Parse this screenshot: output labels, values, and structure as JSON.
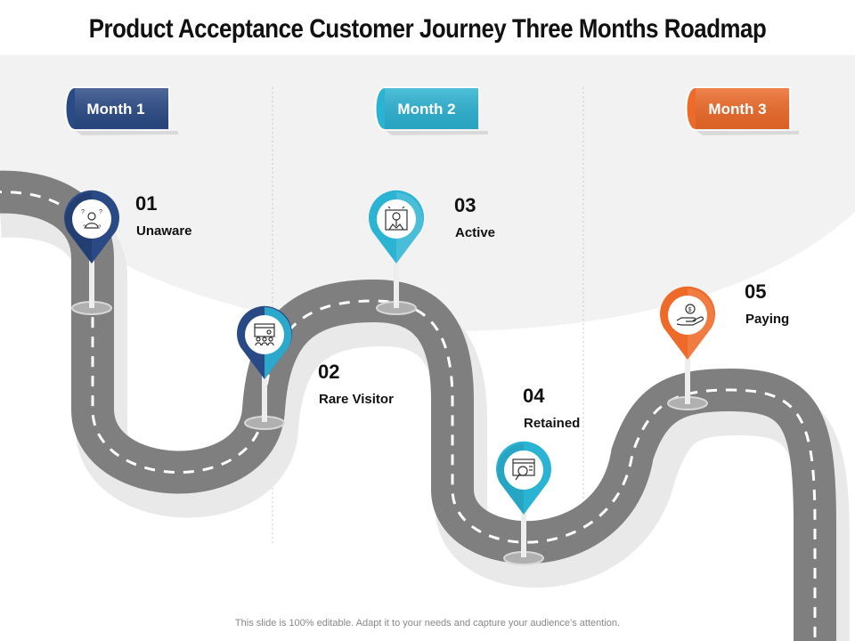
{
  "title": "Product Acceptance Customer Journey Three Months Roadmap",
  "footer": "This slide is 100% editable. Adapt it to your needs and capture your audience’s attention.",
  "months": [
    {
      "label": "Month 1",
      "color": "#2a4a86"
    },
    {
      "label": "Month 2",
      "color": "#2bb3d3"
    },
    {
      "label": "Month 3",
      "color": "#ee6a28"
    }
  ],
  "stages": [
    {
      "number": "01",
      "label": "Unaware",
      "color": "#2a4a86",
      "icon": "confused-person-icon"
    },
    {
      "number": "02",
      "label": "Rare Visitor",
      "color": "#2a4a86",
      "icon": "group-at-screen-icon"
    },
    {
      "number": "03",
      "label": "Active",
      "color": "#2bb3d3",
      "icon": "idea-lightbulb-icon"
    },
    {
      "number": "04",
      "label": "Retained",
      "color": "#2bb3d3",
      "icon": "search-browser-icon"
    },
    {
      "number": "05",
      "label": "Paying",
      "color": "#ee6a28",
      "icon": "money-hand-icon"
    }
  ],
  "colors": {
    "road": "#7f7f7f",
    "road_shadow": "#e9e9e9",
    "background_arc": "#f2f2f2"
  }
}
